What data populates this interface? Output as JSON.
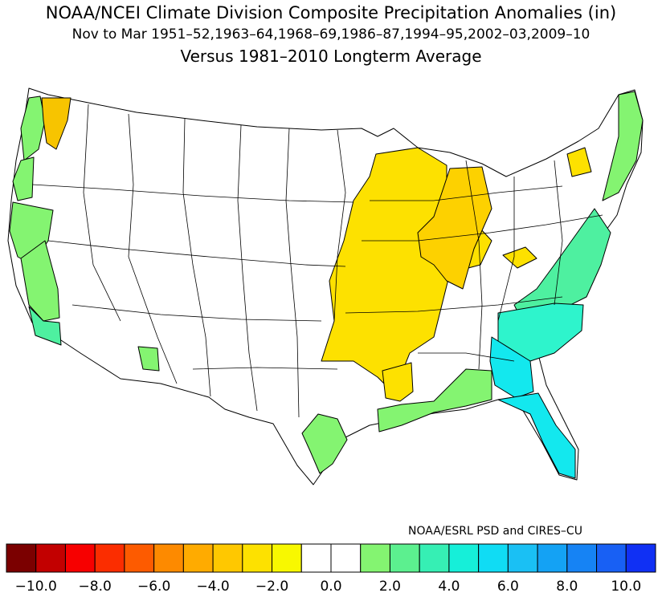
{
  "title": {
    "line1": "NOAA/NCEI Climate Division Composite Precipitation Anomalies (in)",
    "line2": "Nov to Mar  1951–52,1963–64,1968–69,1986–87,1994–95,2002–03,2009–10",
    "line3": "Versus 1981–2010 Longterm Average"
  },
  "credit": "NOAA/ESRL PSD and CIRES–CU",
  "map": {
    "type": "choropleth",
    "subject": "US climate divisions",
    "regions": [
      {
        "name": "washington-coast",
        "category": "wet-1",
        "fill": "#84f471"
      },
      {
        "name": "puget-sound",
        "category": "dry-4",
        "fill": "#f7c400"
      },
      {
        "name": "oregon-coast",
        "category": "wet-1",
        "fill": "#84f471"
      },
      {
        "name": "california-north-coast",
        "category": "wet-1",
        "fill": "#84f471"
      },
      {
        "name": "california-central-valley",
        "category": "wet-1",
        "fill": "#84f471"
      },
      {
        "name": "california-south-coast",
        "category": "wet-2",
        "fill": "#4ef0a0"
      },
      {
        "name": "central-arizona",
        "category": "wet-1",
        "fill": "#84f471"
      },
      {
        "name": "midwest",
        "category": "dry-2",
        "fill": "#fde100"
      },
      {
        "name": "michigan-illinois",
        "category": "dry-3",
        "fill": "#fdd100"
      },
      {
        "name": "arkansas-mississippi",
        "category": "dry-2",
        "fill": "#fde100"
      },
      {
        "name": "western-ny",
        "category": "dry-2",
        "fill": "#fde100"
      },
      {
        "name": "ohio-valley-patch",
        "category": "dry-2",
        "fill": "#fde100"
      },
      {
        "name": "new-england-coast",
        "category": "wet-1",
        "fill": "#84f471"
      },
      {
        "name": "mid-atlantic",
        "category": "wet-2",
        "fill": "#4ef0a0"
      },
      {
        "name": "carolinas",
        "category": "wet-3",
        "fill": "#2ef4cc"
      },
      {
        "name": "georgia",
        "category": "wet-4",
        "fill": "#13e8ee"
      },
      {
        "name": "florida",
        "category": "wet-4",
        "fill": "#13e8ee"
      },
      {
        "name": "gulf-coast",
        "category": "wet-1",
        "fill": "#84f471"
      },
      {
        "name": "south-texas",
        "category": "wet-1",
        "fill": "#84f471"
      }
    ]
  },
  "colorbar": {
    "colors": [
      "#7b0000",
      "#c20000",
      "#f70000",
      "#fb2d00",
      "#fd5b00",
      "#fd8a00",
      "#ffab00",
      "#ffc800",
      "#fde100",
      "#f8f800",
      "#ffffff",
      "#ffffff",
      "#84f471",
      "#5cf08f",
      "#36efb4",
      "#16efd9",
      "#10dcf4",
      "#1ac0f4",
      "#14a2f4",
      "#1683f4",
      "#1860f4",
      "#1030f4"
    ],
    "labels": [
      "−10.0",
      "−8.0",
      "−6.0",
      "−4.0",
      "−2.0",
      "0.0",
      "2.0",
      "4.0",
      "6.0",
      "8.0",
      "10.0"
    ]
  }
}
